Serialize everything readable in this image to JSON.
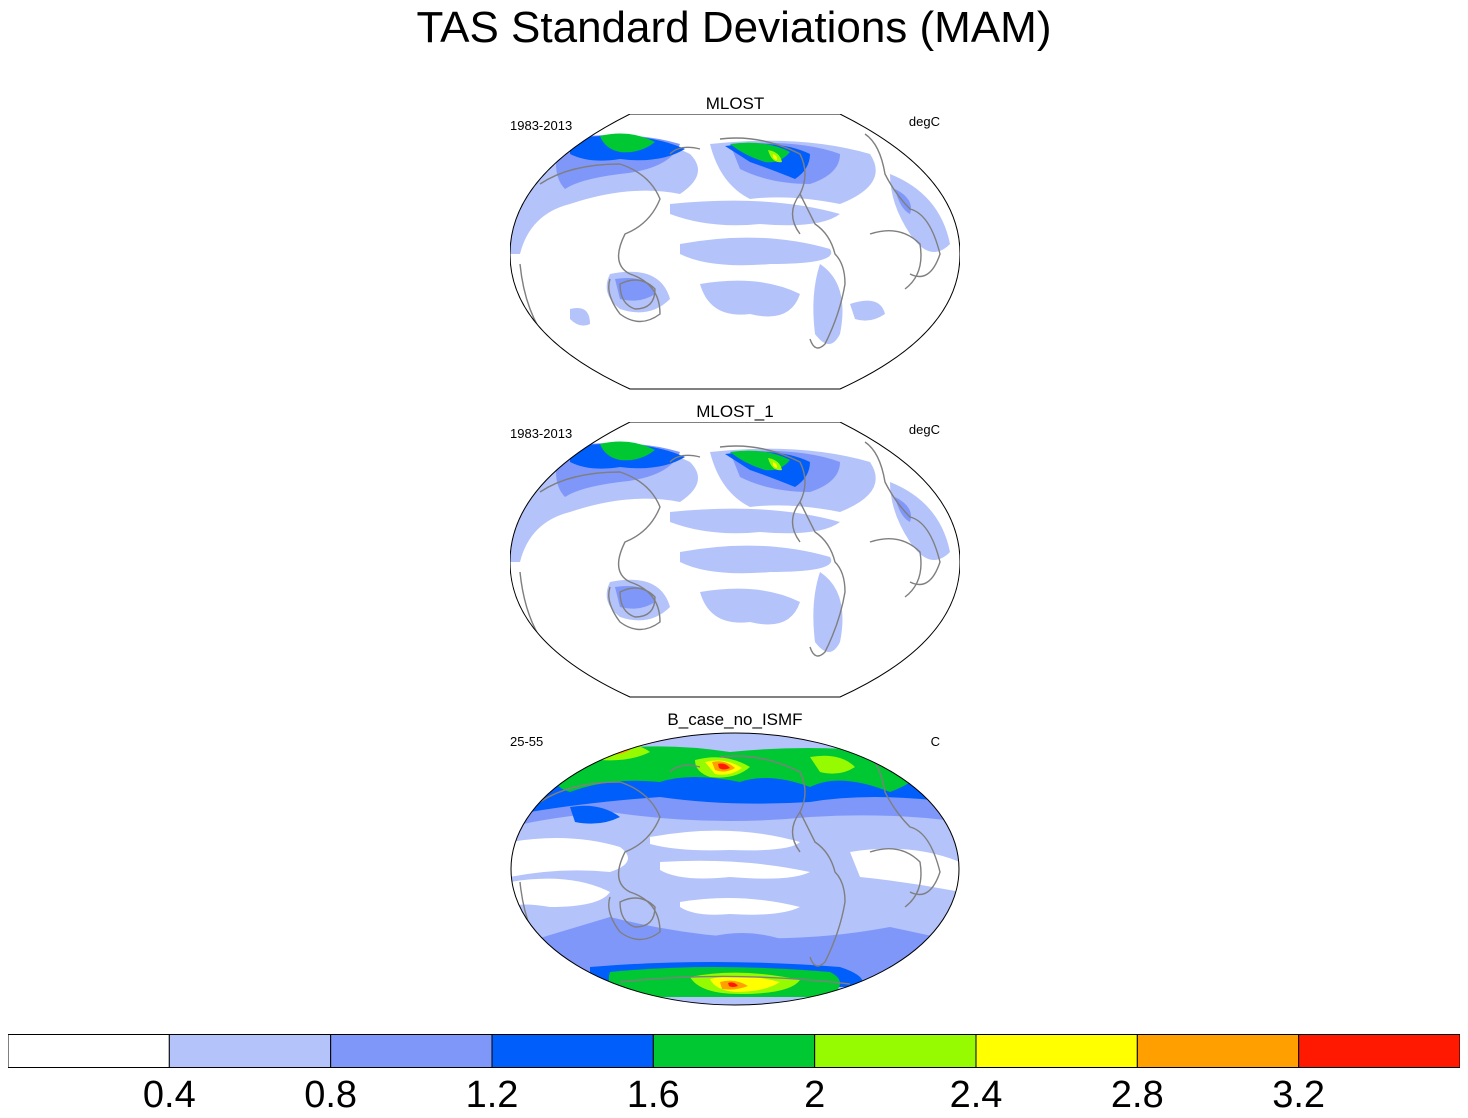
{
  "title": "TAS Standard Deviations (MAM)",
  "panels": [
    {
      "title": "MLOST",
      "left_label": "1983-2013",
      "right_label": "degC"
    },
    {
      "title": "MLOST_1",
      "left_label": "1983-2013",
      "right_label": "degC"
    },
    {
      "title": "B_case_no_ISMF",
      "left_label": "25-55",
      "right_label": "C"
    }
  ],
  "colorbar": {
    "colors": [
      "#ffffff",
      "#b4c3fa",
      "#8097fa",
      "#005ffa",
      "#00c832",
      "#96fa00",
      "#ffff00",
      "#ffa000",
      "#ff1900"
    ],
    "labels": [
      "0.4",
      "0.8",
      "1.2",
      "1.6",
      "2",
      "2.4",
      "2.8",
      "3.2"
    ]
  },
  "colors": {
    "coastline": "#7f7f7f",
    "frame": "#000000"
  }
}
